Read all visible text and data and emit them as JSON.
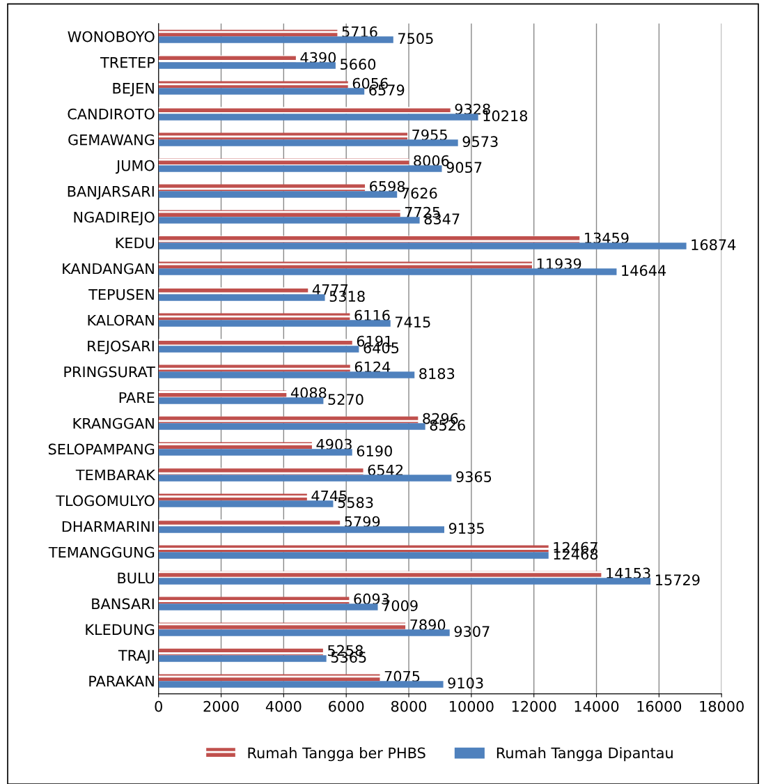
{
  "chart_data": {
    "type": "bar",
    "orientation": "horizontal",
    "categories": [
      "WONOBOYO",
      "TRETEP",
      "BEJEN",
      "CANDIROTO",
      "GEMAWANG",
      "JUMO",
      "BANJARSARI",
      "NGADIREJO",
      "KEDU",
      "KANDANGAN",
      "TEPUSEN",
      "KALORAN",
      "REJOSARI",
      "PRINGSURAT",
      "PARE",
      "KRANGGAN",
      "SELOPAMPANG",
      "TEMBARAK",
      "TLOGOMULYO",
      "DHARMARINI",
      "TEMANGGUNG",
      "BULU",
      "BANSARI",
      "KLEDUNG",
      "TRAJI",
      "PARAKAN"
    ],
    "series": [
      {
        "name": "Rumah Tangga ber PHBS",
        "color": "#c0504d",
        "values": [
          5716,
          4390,
          6056,
          9328,
          7955,
          8006,
          6598,
          7725,
          13459,
          11939,
          4777,
          6116,
          6191,
          6124,
          4088,
          8296,
          4903,
          6542,
          4745,
          5799,
          12467,
          14153,
          6093,
          7890,
          5258,
          7075
        ]
      },
      {
        "name": "Rumah Tangga Dipantau",
        "color": "#4f81bd",
        "values": [
          7505,
          5660,
          6579,
          10218,
          9573,
          9057,
          7626,
          8347,
          16874,
          14644,
          5318,
          7415,
          6405,
          8183,
          5270,
          8526,
          6190,
          9365,
          5583,
          9135,
          12468,
          15729,
          7009,
          9307,
          5365,
          9103
        ]
      }
    ],
    "xlim": [
      0,
      18000
    ],
    "xticks": [
      0,
      2000,
      4000,
      6000,
      8000,
      10000,
      12000,
      14000,
      16000,
      18000
    ],
    "grid": "x",
    "legend": "bottom",
    "data_labels": true
  }
}
